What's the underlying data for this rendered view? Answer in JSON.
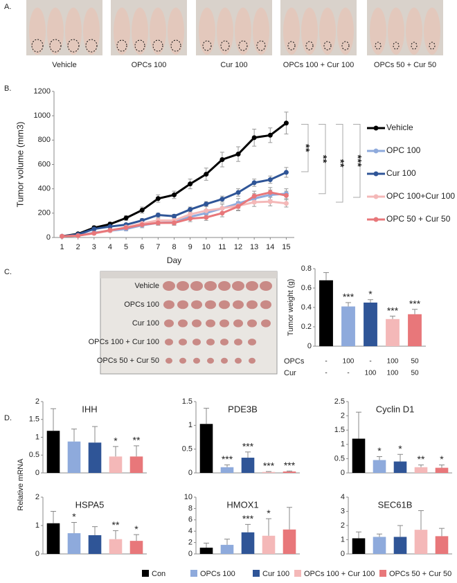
{
  "panels": {
    "a_label": "A.",
    "b_label": "B.",
    "c_label": "C.",
    "d_label": "D.",
    "photo_captions": [
      "Vehicle",
      "OPCs 100",
      "Cur 100",
      "OPCs 100 + Cur 100",
      "OPCs 50 + Cur 50"
    ],
    "tumor_photo_labels": [
      "Vehicle",
      "OPCs 100",
      "Cur  100",
      "OPCs 100 + Cur 100",
      "OPCs  50 + Cur  50"
    ],
    "d_ylabel": "Relative mRNA"
  },
  "legend": {
    "items": [
      {
        "name": "Con",
        "color": "#000000"
      },
      {
        "name": "OPCs 100",
        "color": "#8eaadc"
      },
      {
        "name": "Cur 100",
        "color": "#2f5597"
      },
      {
        "name": "OPCs 100 + Cur 100",
        "color": "#f4b8b8"
      },
      {
        "name": "OPCs 50 + Cur 50",
        "color": "#e8777a"
      }
    ]
  },
  "chart_data": [
    {
      "type": "line",
      "xlabel": "Day",
      "ylabel": "Tumor volume (mm3)",
      "x": [
        1,
        2,
        3,
        4,
        5,
        6,
        7,
        8,
        9,
        10,
        11,
        12,
        13,
        14,
        15
      ],
      "xlim": [
        0.5,
        15.5
      ],
      "xticks": [
        1,
        2,
        3,
        4,
        5,
        6,
        7,
        8,
        9,
        10,
        11,
        12,
        13,
        14,
        15
      ],
      "ylim": [
        0,
        1200
      ],
      "yticks": [
        0,
        200,
        400,
        600,
        800,
        1000,
        1200
      ],
      "series": [
        {
          "name": "Vehicle",
          "color": "#000000",
          "values": [
            10,
            30,
            80,
            110,
            160,
            225,
            320,
            350,
            440,
            520,
            640,
            685,
            820,
            840,
            940
          ],
          "errors": [
            5,
            10,
            15,
            15,
            20,
            25,
            30,
            30,
            40,
            50,
            60,
            60,
            70,
            60,
            90
          ]
        },
        {
          "name": "OPC 100",
          "color": "#8eaadc",
          "values": [
            10,
            15,
            40,
            55,
            70,
            100,
            120,
            125,
            170,
            200,
            240,
            280,
            320,
            350,
            360
          ],
          "errors": [
            5,
            8,
            10,
            12,
            15,
            20,
            20,
            20,
            25,
            30,
            35,
            40,
            40,
            40,
            40
          ]
        },
        {
          "name": "Cur 100",
          "color": "#2f5597",
          "values": [
            10,
            25,
            70,
            90,
            105,
            140,
            185,
            175,
            230,
            275,
            315,
            370,
            450,
            475,
            535
          ],
          "errors": [
            5,
            8,
            10,
            10,
            12,
            15,
            15,
            15,
            20,
            20,
            25,
            30,
            30,
            30,
            40
          ]
        },
        {
          "name": "OPC 100+Cur 100",
          "color": "#f4b8b8",
          "values": [
            10,
            15,
            35,
            55,
            85,
            115,
            140,
            140,
            190,
            220,
            240,
            260,
            290,
            295,
            280
          ],
          "errors": [
            5,
            8,
            10,
            12,
            15,
            20,
            20,
            25,
            30,
            35,
            35,
            35,
            35,
            35,
            30
          ]
        },
        {
          "name": "OPC 50 + Cur 50",
          "color": "#e8777a",
          "values": [
            10,
            15,
            35,
            60,
            80,
            105,
            120,
            120,
            155,
            165,
            200,
            255,
            340,
            370,
            345
          ],
          "errors": [
            5,
            8,
            10,
            12,
            15,
            15,
            15,
            20,
            25,
            25,
            30,
            35,
            40,
            40,
            35
          ]
        }
      ],
      "significance": [
        "**",
        "**",
        "**",
        "***"
      ]
    },
    {
      "type": "bar",
      "ylabel": "Tumor weight (g)",
      "ylim": [
        0,
        0.8
      ],
      "yticks": [
        0,
        0.2,
        0.4,
        0.6,
        0.8
      ],
      "values": [
        0.68,
        0.41,
        0.45,
        0.28,
        0.33
      ],
      "errors": [
        0.08,
        0.04,
        0.03,
        0.03,
        0.05
      ],
      "annotations": [
        null,
        "***",
        "*",
        "***",
        "***"
      ],
      "table": {
        "row_labels": [
          "OPCs",
          "Cur"
        ],
        "rows": [
          [
            "-",
            "100",
            "-",
            "100",
            "50"
          ],
          [
            "-",
            "-",
            "100",
            "100",
            "50"
          ]
        ]
      }
    },
    {
      "type": "bar",
      "title": "IHH",
      "ylim": [
        0,
        2
      ],
      "yticks": [
        0,
        0.5,
        1,
        1.5,
        2
      ],
      "values": [
        1.18,
        0.88,
        0.85,
        0.46,
        0.46
      ],
      "errors": [
        0.62,
        0.35,
        0.45,
        0.28,
        0.3
      ],
      "annotations": [
        null,
        null,
        null,
        "*",
        "**"
      ]
    },
    {
      "type": "bar",
      "title": "PDE3B",
      "ylim": [
        0,
        1.5
      ],
      "yticks": [
        0,
        0.5,
        1,
        1.5
      ],
      "values": [
        1.03,
        0.12,
        0.32,
        0.02,
        0.03
      ],
      "errors": [
        0.33,
        0.05,
        0.12,
        0.01,
        0.01
      ],
      "annotations": [
        null,
        "***",
        "***",
        "***",
        "***"
      ]
    },
    {
      "type": "bar",
      "title": "Cyclin D1",
      "ylim": [
        0,
        2.5
      ],
      "yticks": [
        0,
        0.5,
        1,
        1.5,
        2,
        2.5
      ],
      "values": [
        1.2,
        0.45,
        0.4,
        0.2,
        0.18
      ],
      "errors": [
        0.93,
        0.12,
        0.25,
        0.08,
        0.1
      ],
      "annotations": [
        null,
        "*",
        "*",
        "**",
        "*"
      ]
    },
    {
      "type": "bar",
      "title": "HSPA5",
      "ylim": [
        0,
        2
      ],
      "yticks": [
        0,
        1,
        2
      ],
      "values": [
        1.08,
        0.73,
        0.66,
        0.52,
        0.46
      ],
      "errors": [
        0.42,
        0.38,
        0.3,
        0.3,
        0.22
      ],
      "annotations": [
        null,
        "*",
        null,
        "**",
        "*"
      ]
    },
    {
      "type": "bar",
      "title": "HMOX1",
      "ylim": [
        0,
        10
      ],
      "yticks": [
        0,
        2,
        4,
        6,
        8,
        10
      ],
      "values": [
        1.1,
        1.6,
        3.8,
        3.2,
        4.3
      ],
      "errors": [
        0.8,
        1.0,
        1.4,
        3.0,
        3.9
      ],
      "annotations": [
        null,
        null,
        "***",
        "*",
        null
      ]
    },
    {
      "type": "bar",
      "title": "SEC61B",
      "ylim": [
        0,
        4
      ],
      "yticks": [
        0,
        1,
        2,
        3,
        4
      ],
      "values": [
        1.1,
        1.2,
        1.2,
        1.7,
        1.25
      ],
      "errors": [
        0.45,
        0.2,
        0.8,
        1.35,
        0.55
      ],
      "annotations": [
        null,
        null,
        null,
        null,
        null
      ]
    }
  ]
}
